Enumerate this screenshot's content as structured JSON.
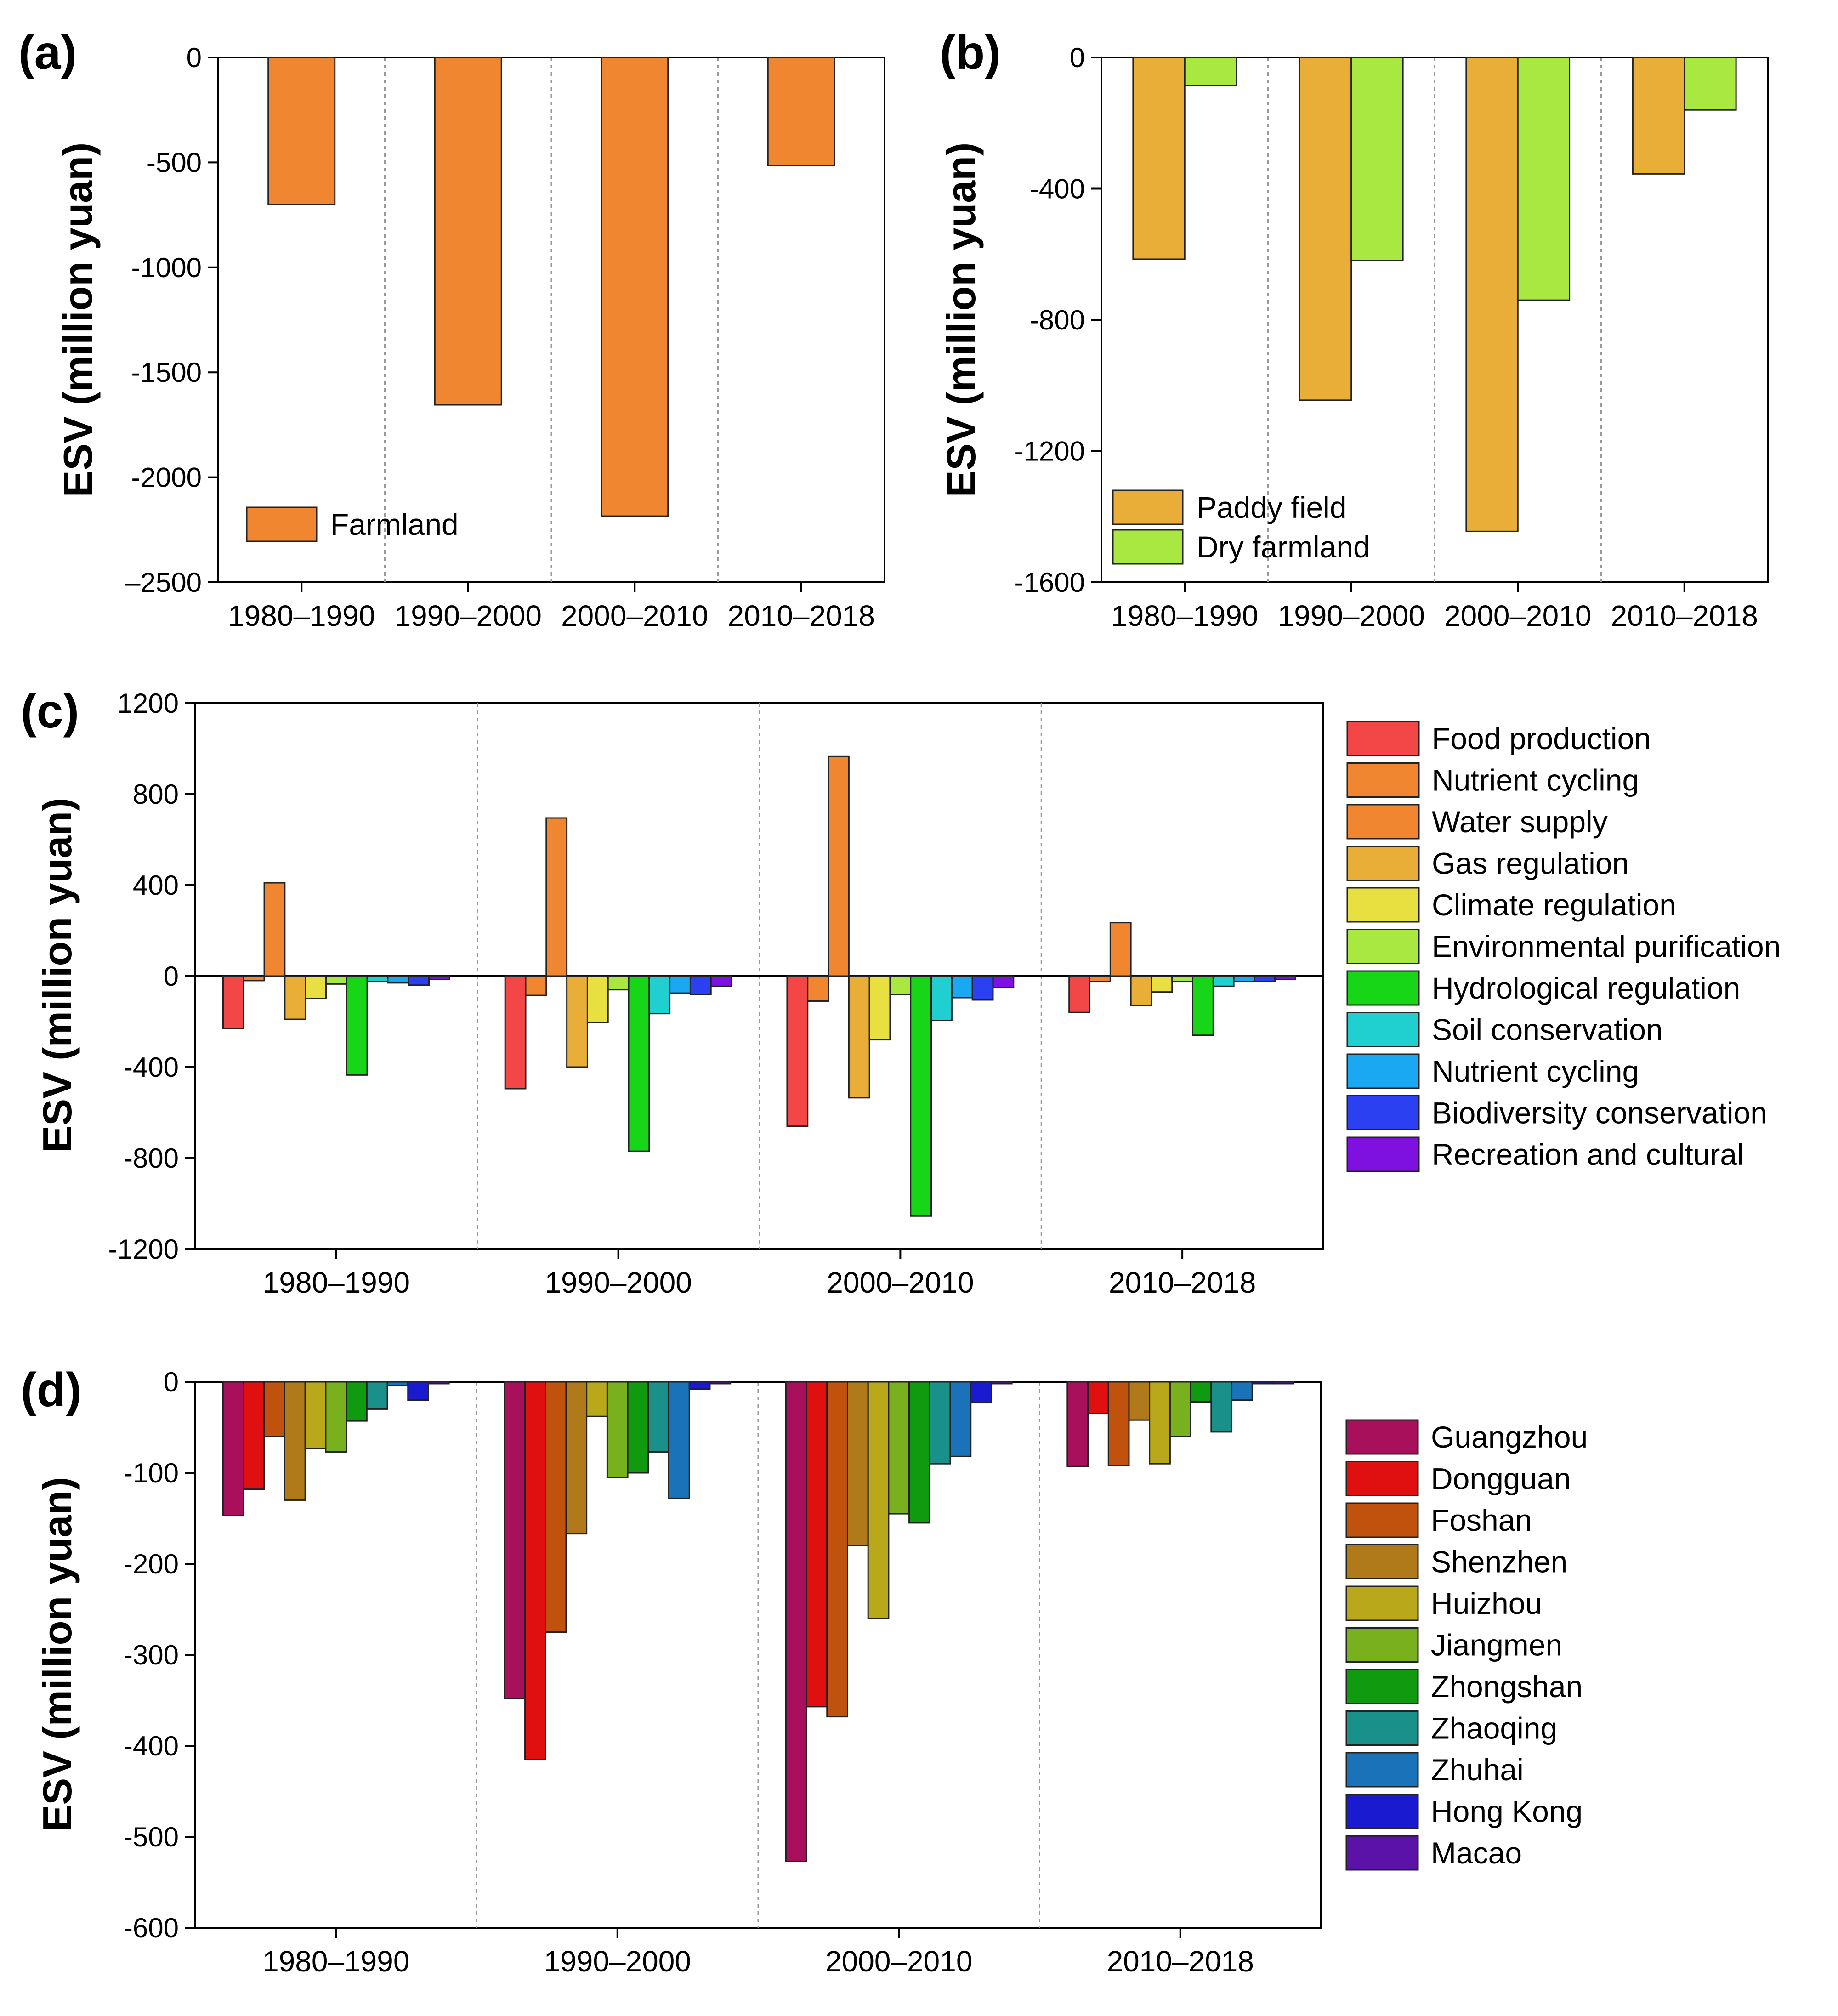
{
  "chart_data": [
    {
      "panel": "(a)",
      "type": "bar",
      "title": "",
      "ylabel": "ESV (million yuan)",
      "xlabel": "",
      "categories": [
        "1980–1990",
        "1990–2000",
        "2000–2010",
        "2010–2018"
      ],
      "ylim": [
        -2500,
        0
      ],
      "yticks": [
        0,
        -500,
        -1000,
        -1500,
        -2000,
        -2500
      ],
      "ytick_labels": [
        "0",
        "-500",
        "-1000",
        "-1500",
        "-2000",
        "–2500"
      ],
      "legend": "bottom-left",
      "series": [
        {
          "name": "Farmland",
          "color": "#F08630",
          "values": [
            -700,
            -1655,
            -2185,
            -515
          ]
        }
      ]
    },
    {
      "panel": "(b)",
      "type": "bar",
      "title": "",
      "ylabel": "ESV (million yuan)",
      "xlabel": "",
      "categories": [
        "1980–1990",
        "1990–2000",
        "2000–2010",
        "2010–2018"
      ],
      "ylim": [
        -1600,
        0
      ],
      "yticks": [
        0,
        -400,
        -800,
        -1200,
        -1600
      ],
      "ytick_labels": [
        "0",
        "-400",
        "-800",
        "-1200",
        "-1600"
      ],
      "legend": "bottom-left",
      "series": [
        {
          "name": "Paddy field",
          "color": "#E8AE38",
          "values": [
            -615,
            -1045,
            -1445,
            -355
          ]
        },
        {
          "name": "Dry farmland",
          "color": "#A8E840",
          "values": [
            -85,
            -620,
            -740,
            -160
          ]
        }
      ]
    },
    {
      "panel": "(c)",
      "type": "bar",
      "title": "",
      "ylabel": "ESV (million yuan)",
      "xlabel": "",
      "categories": [
        "1980–1990",
        "1990–2000",
        "2000–2010",
        "2010–2018"
      ],
      "ylim": [
        -1200,
        1200
      ],
      "yticks": [
        1200,
        800,
        400,
        0,
        -400,
        -800,
        -1200
      ],
      "ytick_labels": [
        "1200",
        "800",
        "400",
        "0",
        "-400",
        "-800",
        "-1200"
      ],
      "legend": "right",
      "series": [
        {
          "name": "Food production",
          "color": "#F34646",
          "values": [
            -230,
            -495,
            -660,
            -160
          ]
        },
        {
          "name": "Nutrient cycling",
          "color": "#F08630",
          "values": [
            -20,
            -85,
            -110,
            -25
          ]
        },
        {
          "name": "Water supply",
          "color": "#F08630",
          "values": [
            410,
            695,
            965,
            235
          ]
        },
        {
          "name": "Gas regulation",
          "color": "#E8AE38",
          "values": [
            -190,
            -400,
            -535,
            -130
          ]
        },
        {
          "name": "Climate regulation",
          "color": "#E8E040",
          "values": [
            -100,
            -205,
            -280,
            -70
          ]
        },
        {
          "name": "Environmental purification",
          "color": "#A8E840",
          "values": [
            -35,
            -60,
            -80,
            -25
          ]
        },
        {
          "name": "Hydrological regulation",
          "color": "#17D517",
          "values": [
            -435,
            -770,
            -1055,
            -260
          ]
        },
        {
          "name": "Soil conservation",
          "color": "#20CFCF",
          "values": [
            -25,
            -165,
            -195,
            -45
          ]
        },
        {
          "name": "Nutrient cycling",
          "color": "#1AA8F2",
          "values": [
            -30,
            -75,
            -95,
            -25
          ]
        },
        {
          "name": "Biodiversity conservation",
          "color": "#2B40F0",
          "values": [
            -40,
            -80,
            -105,
            -25
          ]
        },
        {
          "name": "Recreation and cultural",
          "color": "#7E10E0",
          "values": [
            -15,
            -45,
            -50,
            -15
          ]
        }
      ]
    },
    {
      "panel": "(d)",
      "type": "bar",
      "title": "",
      "ylabel": "ESV (million yuan)",
      "xlabel": "",
      "categories": [
        "1980–1990",
        "1990–2000",
        "2000–2010",
        "2010–2018"
      ],
      "ylim": [
        -600,
        0
      ],
      "yticks": [
        0,
        -100,
        -200,
        -300,
        -400,
        -500,
        -600
      ],
      "ytick_labels": [
        "0",
        "-100",
        "-200",
        "-300",
        "-400",
        "-500",
        "-600"
      ],
      "legend": "right",
      "series": [
        {
          "name": "Guangzhou",
          "color": "#A8105C",
          "values": [
            -147,
            -348,
            -527,
            -93
          ]
        },
        {
          "name": "Dongguan",
          "color": "#E01010",
          "values": [
            -118,
            -415,
            -357,
            -35
          ]
        },
        {
          "name": "Foshan",
          "color": "#C0520E",
          "values": [
            -60,
            -275,
            -368,
            -92
          ]
        },
        {
          "name": "Shenzhen",
          "color": "#B07A1A",
          "values": [
            -130,
            -167,
            -180,
            -42
          ]
        },
        {
          "name": "Huizhou",
          "color": "#B8A81A",
          "values": [
            -73,
            -38,
            -260,
            -90
          ]
        },
        {
          "name": "Jiangmen",
          "color": "#78B01E",
          "values": [
            -77,
            -105,
            -145,
            -60
          ]
        },
        {
          "name": "Zhongshan",
          "color": "#109A10",
          "values": [
            -43,
            -100,
            -155,
            -22
          ]
        },
        {
          "name": "Zhaoqing",
          "color": "#1A908A",
          "values": [
            -30,
            -77,
            -90,
            -55
          ]
        },
        {
          "name": "Zhuhai",
          "color": "#1A72B8",
          "values": [
            -4,
            -128,
            -82,
            -20
          ]
        },
        {
          "name": "Hong Kong",
          "color": "#1A1AD0",
          "values": [
            -20,
            -8,
            -23,
            -2
          ]
        },
        {
          "name": "Macao",
          "color": "#5A12A8",
          "values": [
            -2,
            -2,
            -2,
            -2
          ]
        }
      ]
    }
  ]
}
